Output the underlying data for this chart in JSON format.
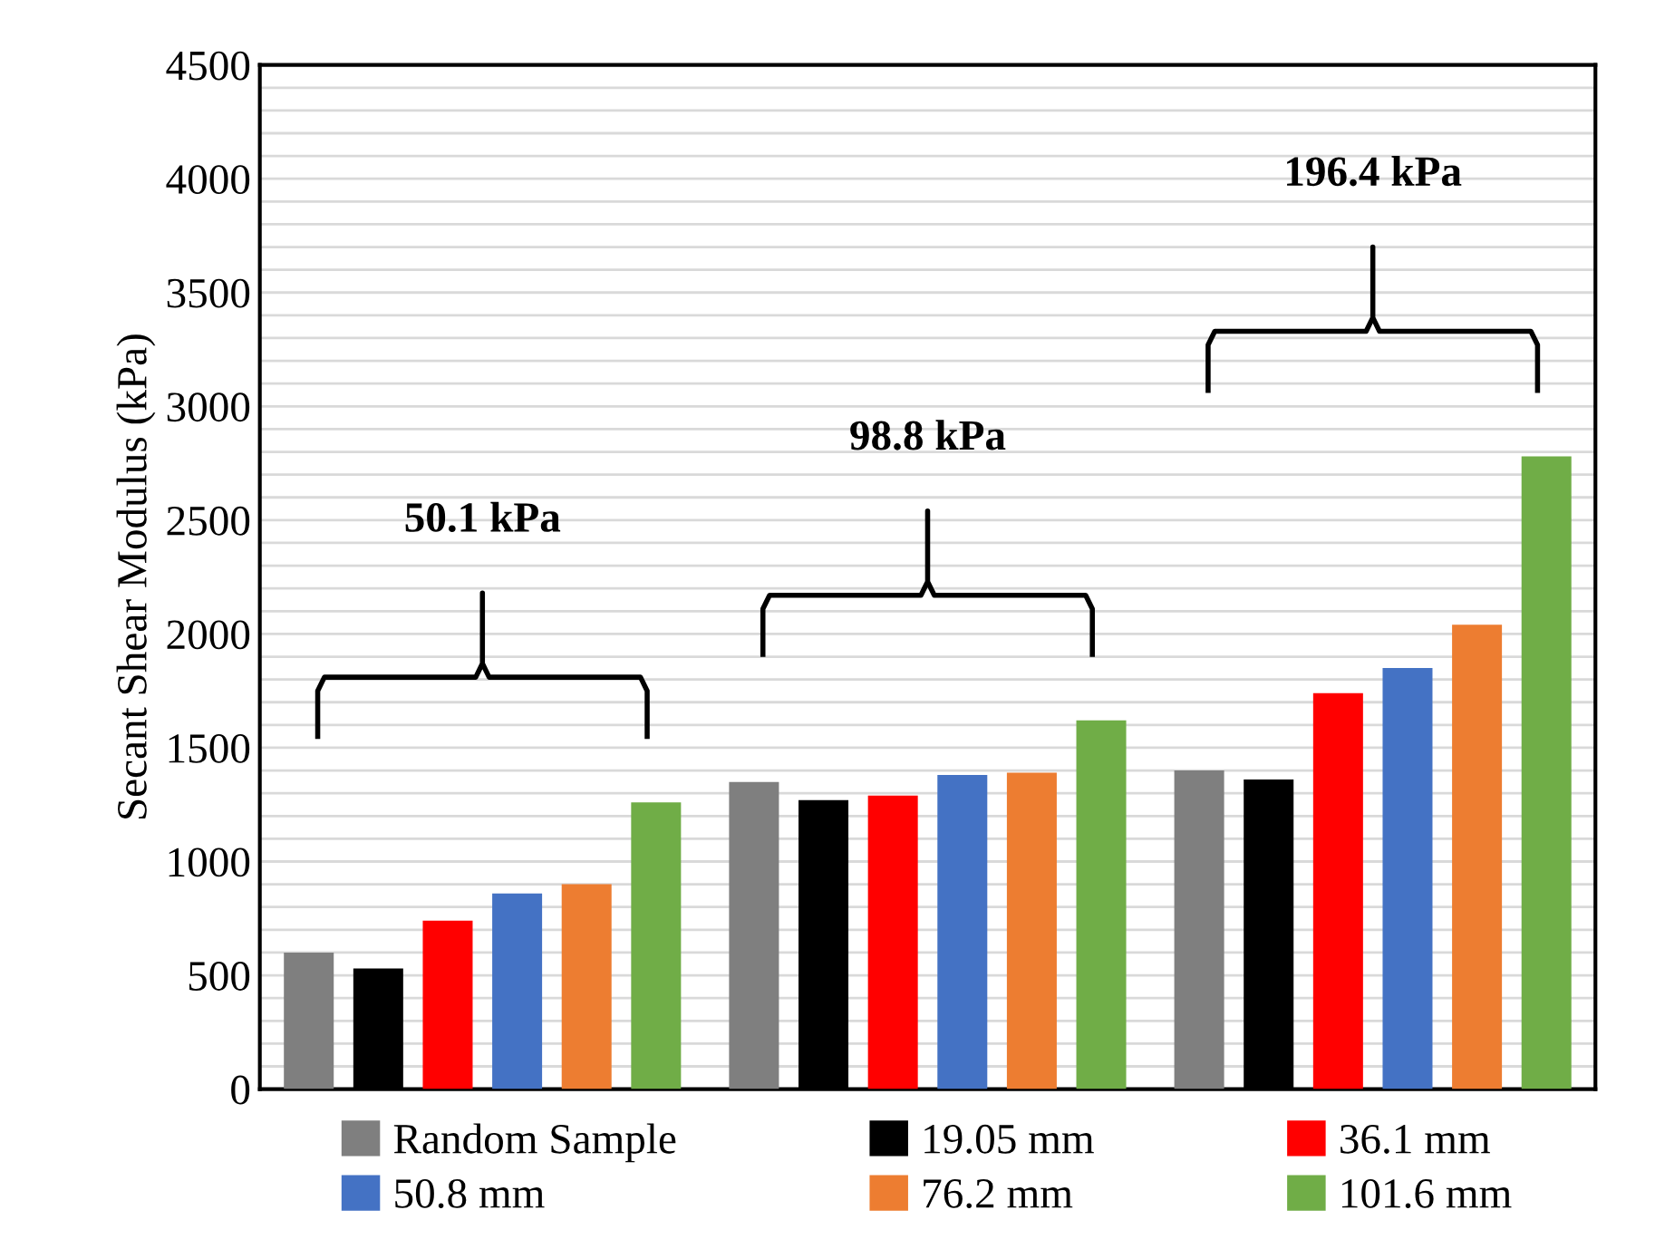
{
  "chart_data": {
    "type": "bar",
    "ylabel": "Secant Shear Modulus (kPa)",
    "categories": [
      null,
      null,
      null
    ],
    "series": [
      {
        "name": "Random Sample",
        "color": "#7f7f7f",
        "values": [
          600,
          1350,
          1400
        ]
      },
      {
        "name": "19.05 mm",
        "color": "#000000",
        "values": [
          530,
          1270,
          1360
        ]
      },
      {
        "name": "36.1 mm",
        "color": "#ff0000",
        "values": [
          740,
          1290,
          1740
        ]
      },
      {
        "name": "50.8 mm",
        "color": "#4472c4",
        "values": [
          860,
          1380,
          1850
        ]
      },
      {
        "name": "76.2 mm",
        "color": "#ed7d31",
        "values": [
          900,
          1390,
          2040
        ]
      },
      {
        "name": "101.6 mm",
        "color": "#70ad47",
        "values": [
          1260,
          1620,
          2780
        ]
      }
    ],
    "annotations": [
      "50.1 kPa",
      "98.8 kPa",
      "196.4 kPa"
    ],
    "ylim": [
      0,
      4500
    ],
    "yticks": [
      0,
      {
        "value": 100,
        "label": null
      },
      {
        "value": 200,
        "label": null
      },
      {
        "value": 300,
        "label": null
      },
      {
        "value": 400,
        "label": null
      },
      500,
      {
        "value": 600,
        "label": null
      },
      {
        "value": 700,
        "label": null
      },
      {
        "value": 800,
        "label": null
      },
      {
        "value": 900,
        "label": null
      },
      1000,
      {
        "value": 1100,
        "label": null
      },
      {
        "value": 1200,
        "label": null
      },
      {
        "value": 1300,
        "label": null
      },
      {
        "value": 1400,
        "label": null
      },
      1500,
      {
        "value": 1600,
        "label": null
      },
      {
        "value": 1700,
        "label": null
      },
      {
        "value": 1800,
        "label": null
      },
      {
        "value": 1900,
        "label": null
      },
      2000,
      {
        "value": 2100,
        "label": null
      },
      {
        "value": 2200,
        "label": null
      },
      {
        "value": 2300,
        "label": null
      },
      {
        "value": 2400,
        "label": null
      },
      2500,
      {
        "value": 2600,
        "label": null
      },
      {
        "value": 2700,
        "label": null
      },
      {
        "value": 2800,
        "label": null
      },
      {
        "value": 2900,
        "label": null
      },
      3000,
      {
        "value": 3100,
        "label": null
      },
      {
        "value": 3200,
        "label": null
      },
      {
        "value": 3300,
        "label": null
      },
      {
        "value": 3400,
        "label": null
      },
      3500,
      {
        "value": 3600,
        "label": null
      },
      {
        "value": 3700,
        "label": null
      },
      {
        "value": 3800,
        "label": null
      },
      {
        "value": 3900,
        "label": null
      },
      4000,
      {
        "value": 4100,
        "label": null
      },
      {
        "value": 4200,
        "label": null
      },
      {
        "value": 4300,
        "label": null
      },
      {
        "value": 4400,
        "label": null
      },
      4500
    ],
    "grid": "y",
    "legend": "bottom"
  }
}
